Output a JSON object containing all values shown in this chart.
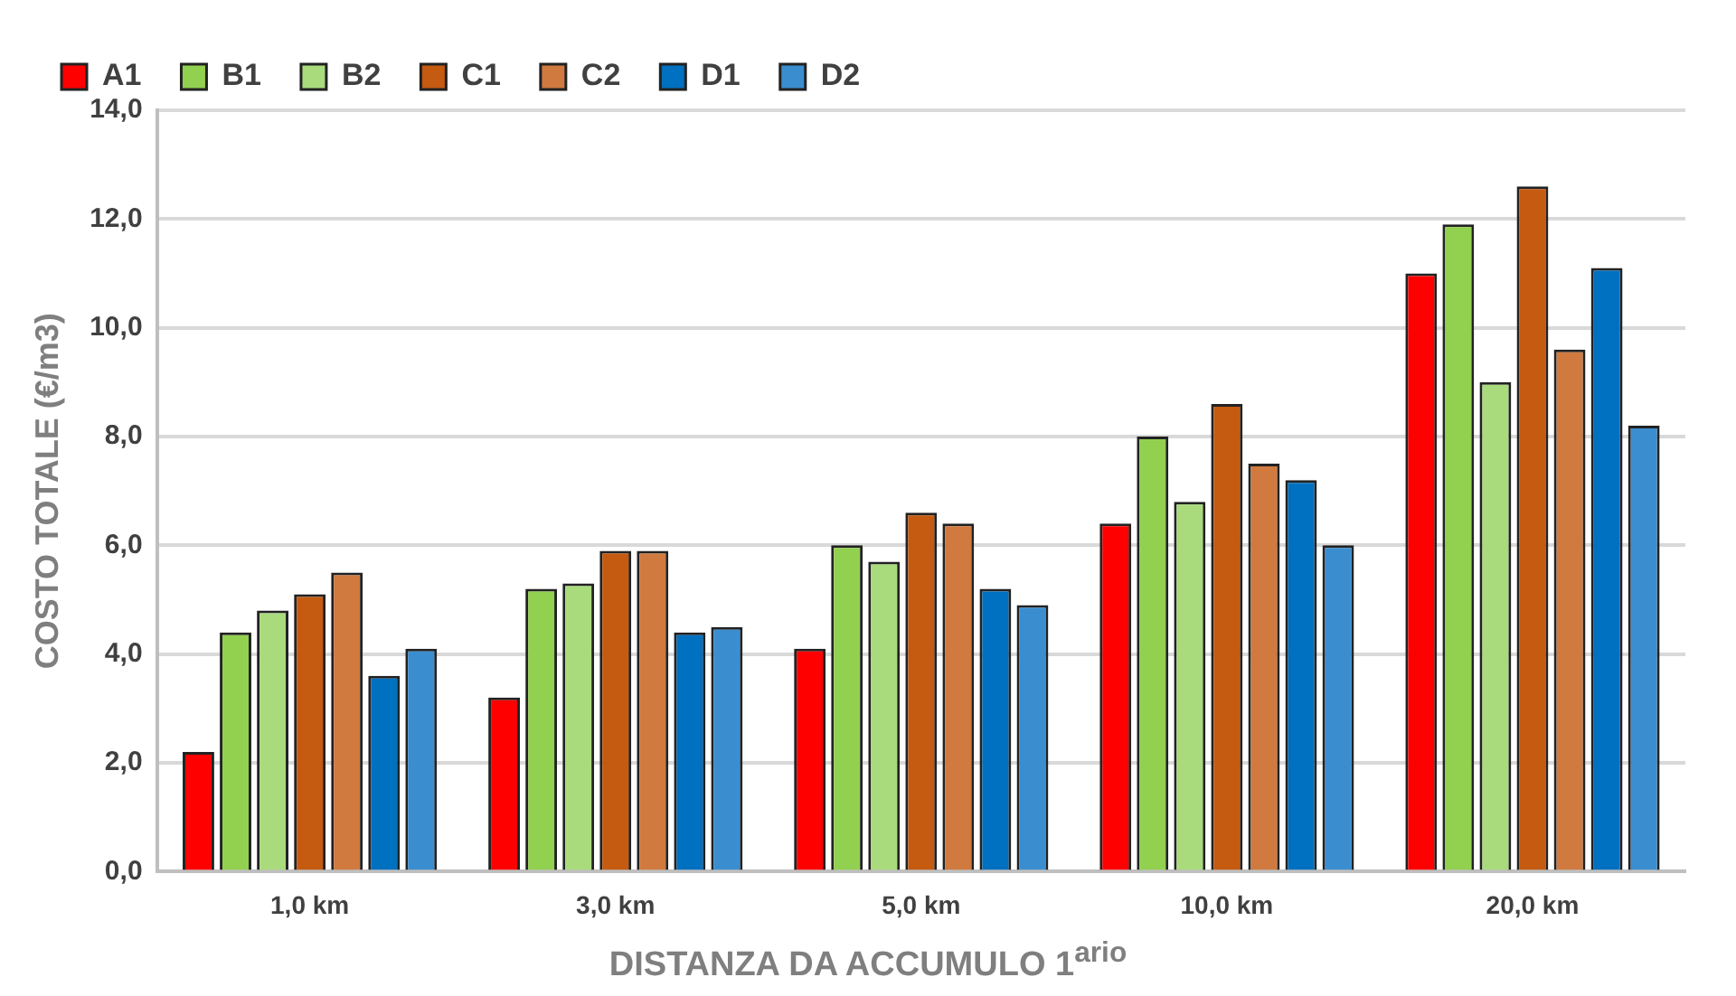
{
  "chart_data": {
    "type": "bar",
    "xlabel": "DISTANZA DA ACCUMULO 1$^{ario}$",
    "ylabel": "COSTO TOTALE (€/m3)",
    "categories": [
      "1,0 km",
      "3,0 km",
      "5,0 km",
      "10,0 km",
      "20,0 km"
    ],
    "series": [
      {
        "name": "A1",
        "color": "#ff0000",
        "values": [
          2.2,
          3.2,
          4.1,
          6.4,
          11.0
        ]
      },
      {
        "name": "B1",
        "color": "#92d050",
        "values": [
          4.4,
          5.2,
          6.0,
          8.0,
          11.9
        ]
      },
      {
        "name": "B2",
        "color": "#a9db7d",
        "values": [
          4.8,
          5.3,
          5.7,
          6.8,
          9.0
        ]
      },
      {
        "name": "C1",
        "color": "#c55a11",
        "values": [
          5.1,
          5.9,
          6.6,
          8.6,
          12.6
        ]
      },
      {
        "name": "C2",
        "color": "#d07a40",
        "values": [
          5.5,
          5.9,
          6.4,
          7.5,
          9.6
        ]
      },
      {
        "name": "D1",
        "color": "#0070c0",
        "values": [
          3.6,
          4.4,
          5.2,
          7.2,
          11.1
        ]
      },
      {
        "name": "D2",
        "color": "#3a8ed0",
        "values": [
          4.1,
          4.5,
          4.9,
          6.0,
          8.2
        ]
      }
    ],
    "ylim": [
      0,
      14
    ],
    "yticks": [
      {
        "value": 0,
        "label": "0,0"
      },
      {
        "value": 2,
        "label": "2,0"
      },
      {
        "value": 4,
        "label": "4,0"
      },
      {
        "value": 6,
        "label": "6,0"
      },
      {
        "value": 8,
        "label": "8,0"
      },
      {
        "value": 10,
        "label": "10,0"
      },
      {
        "value": 12,
        "label": "12,0"
      },
      {
        "value": 14,
        "label": "14,0"
      }
    ],
    "grid": "y",
    "legend": "top left"
  }
}
